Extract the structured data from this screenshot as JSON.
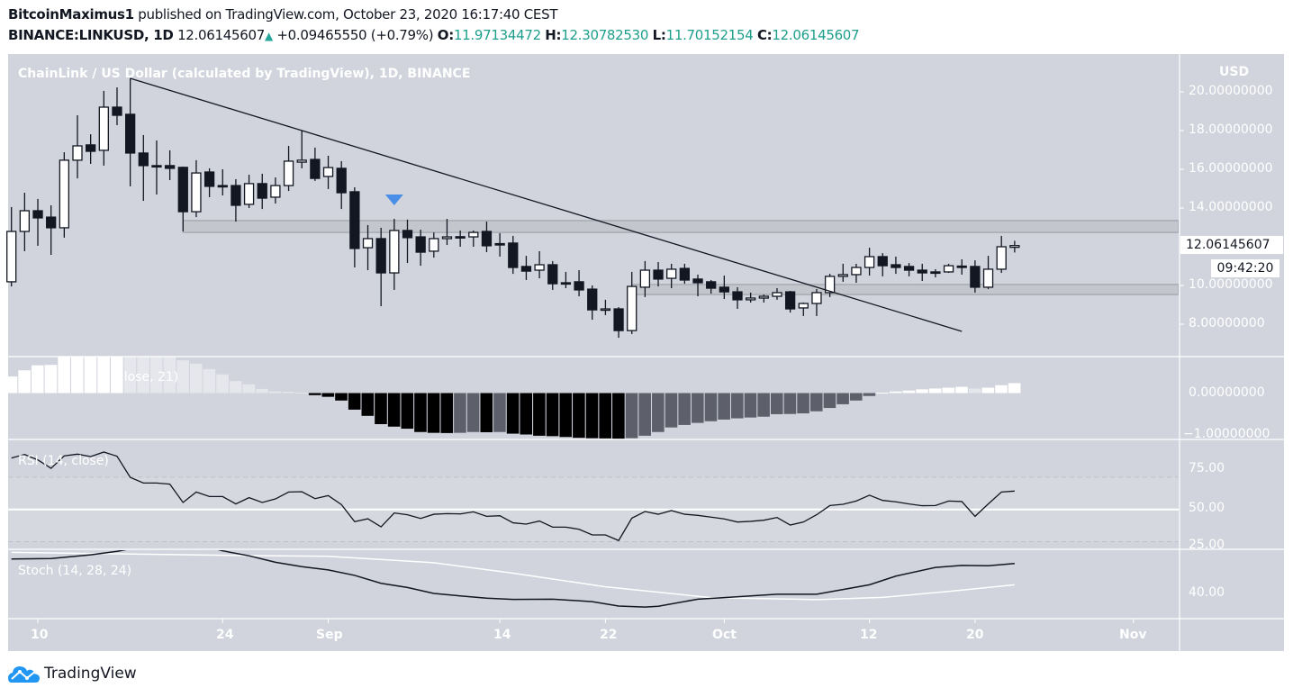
{
  "header": {
    "author": "BitcoinMaximus1",
    "published": "published on TradingView.com, October 23, 2020 16:17:40 CEST",
    "symbol": "BINANCE:LINKUSD, 1D",
    "last": "12.06145607",
    "change": "+0.09465550 (+0.79%)",
    "o_label": "O:",
    "o": "11.97134472",
    "h_label": "H:",
    "h": "12.30782530",
    "l_label": "L:",
    "l": "11.70152154",
    "c_label": "C:",
    "c": "12.06145607"
  },
  "chart_title": "ChainLink / US Dollar (calculated by TradingView), 1D, BINANCE",
  "currency": "USD",
  "price_tag": "12.06145607",
  "countdown": "09:42:20",
  "indicators": {
    "histogram_label": "close, 21)",
    "rsi_label": "RSI (14, close)",
    "stoch_label": "Stoch (14, 28, 24)"
  },
  "price_axis_ticks": [
    "20.00000000",
    "18.00000000",
    "16.00000000",
    "14.00000000",
    "10.00000000",
    "8.00000000"
  ],
  "hist_axis_ticks": [
    "0.00000000",
    "−1.00000000"
  ],
  "rsi_axis_ticks": [
    "75.00",
    "50.00",
    "25.00"
  ],
  "stoch_axis_ticks": [
    "40.00"
  ],
  "time_axis_ticks": [
    "10",
    "24",
    "Sep",
    "14",
    "22",
    "Oct",
    "12",
    "20",
    "Nov"
  ],
  "footer": {
    "brand": "TradingView"
  },
  "colors": {
    "background": "#d1d4dc",
    "up_candle": "#ffffff",
    "down_candle": "#131722",
    "marker": "#4a8fe7",
    "green": "#1e9e8c",
    "brand": "#2196f3"
  },
  "chart_data": {
    "type": "candlestick",
    "candles_fields": [
      "date",
      "open",
      "high",
      "low",
      "close"
    ],
    "candles": [
      [
        "2020-08-08",
        10.19,
        14.05,
        9.95,
        12.79
      ],
      [
        "2020-08-09",
        12.79,
        14.79,
        11.77,
        13.86
      ],
      [
        "2020-08-10",
        13.86,
        14.47,
        12.05,
        13.49
      ],
      [
        "2020-08-11",
        13.53,
        14.14,
        11.58,
        12.98
      ],
      [
        "2020-08-12",
        12.98,
        16.88,
        12.47,
        16.47
      ],
      [
        "2020-08-13",
        16.47,
        18.79,
        15.53,
        17.21
      ],
      [
        "2020-08-14",
        17.26,
        17.81,
        16.28,
        16.93
      ],
      [
        "2020-08-15",
        16.98,
        20.05,
        16.19,
        19.21
      ],
      [
        "2020-08-16",
        19.21,
        20.23,
        18.28,
        18.79
      ],
      [
        "2020-08-17",
        18.84,
        20.7,
        15.12,
        16.84
      ],
      [
        "2020-08-18",
        16.84,
        17.77,
        14.37,
        16.19
      ],
      [
        "2020-08-19",
        16.19,
        17.49,
        14.7,
        16.14
      ],
      [
        "2020-08-20",
        16.19,
        16.98,
        15.44,
        16.05
      ],
      [
        "2020-08-21",
        16.1,
        16.14,
        12.79,
        13.81
      ],
      [
        "2020-08-22",
        13.81,
        16.47,
        13.53,
        15.81
      ],
      [
        "2020-08-23",
        15.86,
        16.05,
        14.56,
        15.12
      ],
      [
        "2020-08-24",
        15.16,
        16.0,
        14.65,
        15.14
      ],
      [
        "2020-08-25",
        15.16,
        15.49,
        13.3,
        14.14
      ],
      [
        "2020-08-26",
        14.19,
        15.72,
        14.0,
        15.26
      ],
      [
        "2020-08-27",
        15.26,
        15.77,
        13.95,
        14.51
      ],
      [
        "2020-08-28",
        14.56,
        15.58,
        14.23,
        15.16
      ],
      [
        "2020-08-29",
        15.16,
        17.21,
        14.88,
        16.42
      ],
      [
        "2020-08-30",
        16.37,
        18.0,
        16.05,
        16.47
      ],
      [
        "2020-08-31",
        16.51,
        17.12,
        15.4,
        15.53
      ],
      [
        "2020-09-01",
        15.63,
        16.7,
        14.98,
        16.09
      ],
      [
        "2020-09-02",
        16.05,
        16.42,
        13.95,
        14.79
      ],
      [
        "2020-09-03",
        14.84,
        15.07,
        10.93,
        11.91
      ],
      [
        "2020-09-04",
        11.95,
        13.12,
        10.79,
        12.42
      ],
      [
        "2020-09-05",
        12.42,
        12.98,
        8.93,
        10.65
      ],
      [
        "2020-09-06",
        10.65,
        13.44,
        9.77,
        12.84
      ],
      [
        "2020-09-07",
        12.84,
        13.4,
        11.16,
        12.47
      ],
      [
        "2020-09-08",
        12.51,
        12.88,
        11.02,
        11.72
      ],
      [
        "2020-09-09",
        11.77,
        12.74,
        11.44,
        12.42
      ],
      [
        "2020-09-10",
        12.42,
        13.44,
        12.09,
        12.51
      ],
      [
        "2020-09-11",
        12.52,
        12.84,
        12.0,
        12.5
      ],
      [
        "2020-09-12",
        12.51,
        12.84,
        12.0,
        12.74
      ],
      [
        "2020-09-13",
        12.79,
        13.3,
        11.72,
        12.05
      ],
      [
        "2020-09-14",
        12.16,
        12.7,
        11.49,
        12.12
      ],
      [
        "2020-09-15",
        12.19,
        12.56,
        10.6,
        10.93
      ],
      [
        "2020-09-16",
        10.98,
        11.53,
        10.28,
        10.74
      ],
      [
        "2020-09-17",
        10.79,
        11.77,
        10.37,
        11.07
      ],
      [
        "2020-09-18",
        11.07,
        11.26,
        9.77,
        10.09
      ],
      [
        "2020-09-19",
        10.14,
        10.7,
        9.86,
        10.12
      ],
      [
        "2020-09-20",
        10.19,
        10.79,
        9.44,
        9.77
      ],
      [
        "2020-09-21",
        9.81,
        10.0,
        8.23,
        8.74
      ],
      [
        "2020-09-22",
        8.77,
        9.26,
        8.47,
        8.79
      ],
      [
        "2020-09-23",
        8.79,
        8.88,
        7.3,
        7.67
      ],
      [
        "2020-09-24",
        7.67,
        10.7,
        7.49,
        9.95
      ],
      [
        "2020-09-25",
        9.91,
        11.26,
        9.4,
        10.79
      ],
      [
        "2020-09-26",
        10.79,
        11.21,
        9.95,
        10.33
      ],
      [
        "2020-09-27",
        10.37,
        11.12,
        9.86,
        10.84
      ],
      [
        "2020-09-28",
        10.88,
        11.12,
        10.09,
        10.28
      ],
      [
        "2020-09-29",
        10.33,
        10.56,
        9.44,
        10.14
      ],
      [
        "2020-09-30",
        10.19,
        10.28,
        9.58,
        9.86
      ],
      [
        "2020-10-01",
        9.91,
        10.51,
        9.3,
        9.67
      ],
      [
        "2020-10-02",
        9.67,
        9.91,
        8.79,
        9.26
      ],
      [
        "2020-10-03",
        9.26,
        9.63,
        9.12,
        9.35
      ],
      [
        "2020-10-04",
        9.35,
        9.53,
        9.12,
        9.44
      ],
      [
        "2020-10-05",
        9.44,
        9.86,
        9.26,
        9.63
      ],
      [
        "2020-10-06",
        9.67,
        9.72,
        8.6,
        8.79
      ],
      [
        "2020-10-07",
        8.84,
        9.12,
        8.42,
        9.07
      ],
      [
        "2020-10-08",
        9.07,
        9.81,
        8.42,
        9.63
      ],
      [
        "2020-10-09",
        9.63,
        10.6,
        9.4,
        10.47
      ],
      [
        "2020-10-10",
        10.47,
        11.12,
        10.19,
        10.56
      ],
      [
        "2020-10-11",
        10.56,
        11.12,
        10.14,
        10.93
      ],
      [
        "2020-10-12",
        10.93,
        11.95,
        10.51,
        11.49
      ],
      [
        "2020-10-13",
        11.49,
        11.67,
        10.47,
        11.02
      ],
      [
        "2020-10-14",
        11.07,
        11.49,
        10.6,
        10.93
      ],
      [
        "2020-10-15",
        10.98,
        11.16,
        10.47,
        10.79
      ],
      [
        "2020-10-16",
        10.79,
        11.12,
        10.23,
        10.65
      ],
      [
        "2020-10-17",
        10.7,
        10.84,
        10.42,
        10.65
      ],
      [
        "2020-10-18",
        10.7,
        11.12,
        10.65,
        11.02
      ],
      [
        "2020-10-19",
        11.0,
        11.35,
        10.56,
        10.98
      ],
      [
        "2020-10-20",
        10.98,
        11.3,
        9.63,
        9.91
      ],
      [
        "2020-10-21",
        9.91,
        11.53,
        9.81,
        10.84
      ],
      [
        "2020-10-22",
        10.84,
        12.56,
        10.65,
        12.0
      ],
      [
        "2020-10-23",
        11.97134472,
        12.3078253,
        11.70152154,
        12.06145607
      ]
    ],
    "price_range": [
      7,
      21.5
    ],
    "trendline": {
      "from": [
        "2020-08-17",
        20.7
      ],
      "to": [
        "2020-10-19",
        7.63
      ]
    },
    "zones": [
      {
        "from": "2020-08-21",
        "low": 12.74,
        "high": 13.35
      },
      {
        "from": "2020-09-24",
        "low": 9.53,
        "high": 10.05
      }
    ],
    "marker": {
      "date": "2020-09-06",
      "price": 14.42,
      "shape": "down-triangle"
    },
    "histogram": {
      "values": [
        0.4,
        0.55,
        0.67,
        0.68,
        0.9,
        1.0,
        1.1,
        1.2,
        1.25,
        1.2,
        1.1,
        1.0,
        0.9,
        0.79,
        0.71,
        0.58,
        0.45,
        0.29,
        0.21,
        0.1,
        0.04,
        0.03,
        0.01,
        -0.05,
        -0.09,
        -0.18,
        -0.4,
        -0.55,
        -0.75,
        -0.81,
        -0.86,
        -0.94,
        -0.96,
        -0.965,
        -0.96,
        -0.94,
        -0.945,
        -0.94,
        -0.98,
        -1.0,
        -1.03,
        -1.04,
        -1.06,
        -1.08,
        -1.09,
        -1.095,
        -1.1,
        -1.09,
        -1.03,
        -0.94,
        -0.83,
        -0.77,
        -0.72,
        -0.68,
        -0.64,
        -0.61,
        -0.59,
        -0.57,
        -0.51,
        -0.505,
        -0.49,
        -0.44,
        -0.36,
        -0.27,
        -0.18,
        -0.07,
        0.01,
        0.04,
        0.06,
        0.09,
        0.11,
        0.13,
        0.15,
        0.11,
        0.13,
        0.19,
        0.24
      ],
      "colors": {
        "pos_up": "#ffffff",
        "pos_down": "#e6e7ec",
        "neg_down": "#000000",
        "neg_up": "#5d606b"
      }
    },
    "rsi": {
      "values": [
        81.9,
        84.1,
        80.7,
        75.5,
        83.2,
        84.3,
        82.8,
        85.6,
        83.0,
        69.9,
        66.4,
        66.4,
        65.7,
        54.3,
        60.8,
        58.0,
        58.0,
        53.4,
        57.3,
        54.3,
        56.5,
        60.8,
        61.0,
        56.7,
        58.6,
        53.0,
        42.4,
        44.2,
        39.2,
        47.8,
        46.7,
        44.4,
        47.0,
        47.4,
        47.2,
        48.5,
        45.7,
        46.1,
        41.7,
        40.9,
        42.8,
        39.0,
        39.0,
        37.7,
        34.2,
        34.2,
        30.7,
        44.6,
        48.7,
        47.0,
        49.3,
        47.0,
        46.3,
        45.2,
        44.1,
        42.2,
        42.6,
        43.3,
        45.0,
        40.3,
        42.2,
        46.7,
        52.4,
        53.2,
        55.2,
        58.8,
        55.6,
        54.7,
        53.4,
        52.3,
        52.4,
        55.2,
        54.9,
        45.7,
        53.4,
        60.8,
        61.4
      ],
      "levels": [
        70,
        50,
        30
      ]
    },
    "stoch": {
      "k": [
        [
          "2020-08-08",
          53.9
        ],
        [
          "2020-08-11",
          54.1
        ],
        [
          "2020-08-14",
          55.6
        ],
        [
          "2020-08-16",
          57.0
        ],
        [
          "2020-08-19",
          60
        ],
        [
          "2020-08-22",
          60
        ],
        [
          "2020-08-24",
          57.2
        ],
        [
          "2020-08-26",
          55.2
        ],
        [
          "2020-08-28",
          52.6
        ],
        [
          "2020-08-30",
          50.8
        ],
        [
          "2020-09-01",
          49.5
        ],
        [
          "2020-09-03",
          47.3
        ],
        [
          "2020-09-05",
          44.1
        ],
        [
          "2020-09-07",
          42.4
        ],
        [
          "2020-09-09",
          40.0
        ],
        [
          "2020-09-11",
          39.0
        ],
        [
          "2020-09-13",
          38.1
        ],
        [
          "2020-09-15",
          37.6
        ],
        [
          "2020-09-18",
          37.7
        ],
        [
          "2020-09-21",
          36.7
        ],
        [
          "2020-09-23",
          34.9
        ],
        [
          "2020-09-25",
          34.5
        ],
        [
          "2020-09-26",
          34.8
        ],
        [
          "2020-09-29",
          37.7
        ],
        [
          "2020-10-01",
          38.3
        ],
        [
          "2020-10-05",
          39.7
        ],
        [
          "2020-10-08",
          39.7
        ],
        [
          "2020-10-12",
          43.5
        ],
        [
          "2020-10-14",
          47.0
        ],
        [
          "2020-10-17",
          50.5
        ],
        [
          "2020-10-19",
          51.3
        ],
        [
          "2020-10-21",
          51.2
        ],
        [
          "2020-10-23",
          52.1
        ]
      ],
      "d": [
        [
          "2020-08-08",
          56.6
        ],
        [
          "2020-08-16",
          56.0
        ],
        [
          "2020-08-24",
          55.4
        ],
        [
          "2020-09-01",
          55.0
        ],
        [
          "2020-09-09",
          52.4
        ],
        [
          "2020-09-15",
          48.2
        ],
        [
          "2020-09-22",
          42.7
        ],
        [
          "2020-09-30",
          38.3
        ],
        [
          "2020-10-08",
          37.5
        ],
        [
          "2020-10-13",
          38.4
        ],
        [
          "2020-10-18",
          40.8
        ],
        [
          "2020-10-23",
          43.5
        ]
      ]
    }
  }
}
